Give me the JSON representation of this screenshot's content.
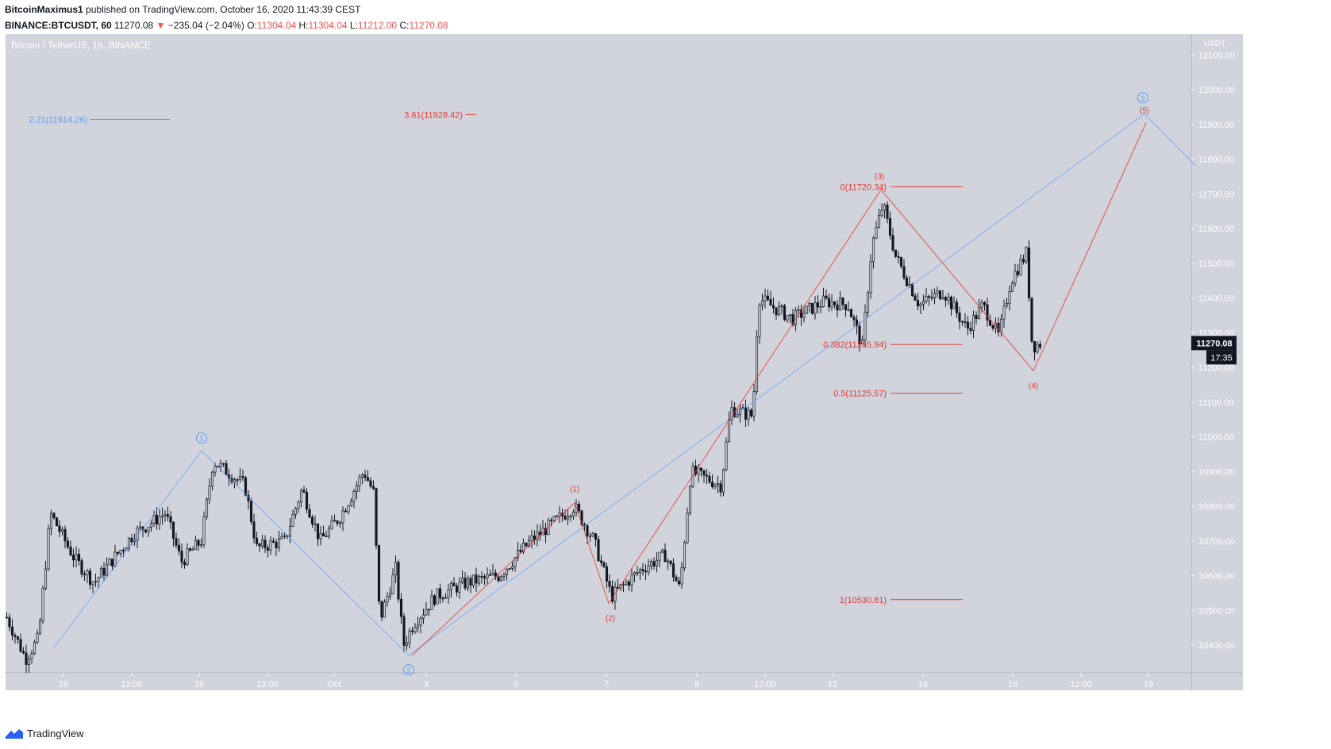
{
  "header": {
    "author": "BitcoinMaximus1",
    "published": "published on TradingView.com, October 16, 2020 11:43:39 CEST",
    "symbol": "BINANCE:BTCUSDT, 60",
    "last": "11270.08",
    "change_arrow": "▼",
    "change": "−235.04 (−2.04%)",
    "o_label": "O:",
    "o_value": "11304.04",
    "h_label": "H:",
    "h_value": "11304.04",
    "l_label": "L:",
    "l_value": "11212.00",
    "c_label": "C:",
    "c_value": "11270.08"
  },
  "footer": {
    "brand": "TradingView",
    "logo_icon": "tradingview-logo-icon"
  },
  "colors": {
    "background": "#d1d4dc",
    "candle": "#131722",
    "red": "#e53935",
    "blue": "#5b9cf6",
    "price_label_bg": "#131722"
  },
  "chart_data": {
    "type": "candlestick",
    "title": "Bitcoin / TetherUS, 1h, BINANCE",
    "axis_unit": "USDT",
    "ylim": [
      10320,
      12160
    ],
    "y_ticks": [
      10400,
      10500,
      10600,
      10700,
      10800,
      10900,
      11000,
      11100,
      11200,
      11300,
      11400,
      11500,
      11600,
      11700,
      11800,
      11900,
      12000,
      12100
    ],
    "y_tick_labels": [
      "10400.00",
      "10500.00",
      "10600.00",
      "10700.00",
      "10800.00",
      "10900.00",
      "11000.00",
      "11100.00",
      "11200.00",
      "11300.00",
      "11400.00",
      "11500.00",
      "11600.00",
      "11700.00",
      "11800.00",
      "11900.00",
      "12000.00",
      "12100.00"
    ],
    "x_ticks": [
      "25",
      "12:00",
      "28",
      "12:00",
      "Oct",
      "3",
      "5",
      "7",
      "9",
      "12:00",
      "12",
      "14",
      "16",
      "12:00",
      "19"
    ],
    "last_price": {
      "value": 11270.08,
      "label": "11270.08",
      "countdown": "17:35"
    },
    "price_path": [
      {
        "t": 0,
        "p": 10480
      },
      {
        "t": 24,
        "p": 10360
      },
      {
        "t": 40,
        "p": 10420
      },
      {
        "t": 55,
        "p": 10780
      },
      {
        "t": 85,
        "p": 10650
      },
      {
        "t": 110,
        "p": 10580
      },
      {
        "t": 160,
        "p": 10720
      },
      {
        "t": 200,
        "p": 10780
      },
      {
        "t": 220,
        "p": 10640
      },
      {
        "t": 245,
        "p": 10700
      },
      {
        "t": 260,
        "p": 10930
      },
      {
        "t": 300,
        "p": 10860
      },
      {
        "t": 315,
        "p": 10680
      },
      {
        "t": 350,
        "p": 10700
      },
      {
        "t": 372,
        "p": 10850
      },
      {
        "t": 395,
        "p": 10700
      },
      {
        "t": 420,
        "p": 10770
      },
      {
        "t": 450,
        "p": 10900
      },
      {
        "t": 462,
        "p": 10840
      },
      {
        "t": 470,
        "p": 10470
      },
      {
        "t": 490,
        "p": 10620
      },
      {
        "t": 500,
        "p": 10400
      },
      {
        "t": 512,
        "p": 10460
      },
      {
        "t": 540,
        "p": 10540
      },
      {
        "t": 580,
        "p": 10580
      },
      {
        "t": 620,
        "p": 10600
      },
      {
        "t": 660,
        "p": 10700
      },
      {
        "t": 715,
        "p": 10800
      },
      {
        "t": 740,
        "p": 10700
      },
      {
        "t": 762,
        "p": 10540
      },
      {
        "t": 800,
        "p": 10620
      },
      {
        "t": 830,
        "p": 10660
      },
      {
        "t": 848,
        "p": 10560
      },
      {
        "t": 862,
        "p": 10900
      },
      {
        "t": 900,
        "p": 10860
      },
      {
        "t": 912,
        "p": 11080
      },
      {
        "t": 940,
        "p": 11060
      },
      {
        "t": 947,
        "p": 11400
      },
      {
        "t": 990,
        "p": 11340
      },
      {
        "t": 1030,
        "p": 11390
      },
      {
        "t": 1060,
        "p": 11380
      },
      {
        "t": 1078,
        "p": 11260
      },
      {
        "t": 1090,
        "p": 11550
      },
      {
        "t": 1104,
        "p": 11670
      },
      {
        "t": 1120,
        "p": 11520
      },
      {
        "t": 1150,
        "p": 11380
      },
      {
        "t": 1180,
        "p": 11420
      },
      {
        "t": 1210,
        "p": 11310
      },
      {
        "t": 1230,
        "p": 11380
      },
      {
        "t": 1250,
        "p": 11290
      },
      {
        "t": 1265,
        "p": 11450
      },
      {
        "t": 1285,
        "p": 11530
      },
      {
        "t": 1292,
        "p": 11260
      },
      {
        "t": 1304,
        "p": 11270
      }
    ],
    "wave_labels_primary": [
      {
        "label": "1",
        "t": 247,
        "p": 10960
      },
      {
        "label": "2",
        "t": 508,
        "p": 10370
      },
      {
        "label": "3",
        "t": 1433,
        "p": 11940
      }
    ],
    "primary_path": [
      {
        "t": 60,
        "p": 10390
      },
      {
        "t": 247,
        "p": 10960
      },
      {
        "t": 508,
        "p": 10370
      },
      {
        "t": 1435,
        "p": 11930
      },
      {
        "t": 1500,
        "p": 11780
      }
    ],
    "wave_labels_minor": [
      {
        "label": "(1)",
        "t": 717,
        "p": 10820
      },
      {
        "label": "(2)",
        "t": 762,
        "p": 10520
      },
      {
        "label": "(3)",
        "t": 1101,
        "p": 11720
      },
      {
        "label": "(4)",
        "t": 1295,
        "p": 11190
      },
      {
        "label": "(5)",
        "t": 1435,
        "p": 11910
      }
    ],
    "minor_path": [
      {
        "t": 512,
        "p": 10370
      },
      {
        "t": 717,
        "p": 10810
      },
      {
        "t": 760,
        "p": 10520
      },
      {
        "t": 1103,
        "p": 11712
      },
      {
        "t": 1295,
        "p": 11190
      },
      {
        "t": 1437,
        "p": 11905
      }
    ],
    "fib_levels": [
      {
        "label": "0(11720.34)",
        "value": 11720.34
      },
      {
        "label": "0.382(11265.94)",
        "value": 11265.94
      },
      {
        "label": "0.5(11125.57)",
        "value": 11125.57
      },
      {
        "label": "1(10530.81)",
        "value": 10530.81
      }
    ],
    "extension_levels": [
      {
        "label": "2.21(11914.26)",
        "value": 11914.26,
        "color": "blue"
      },
      {
        "label": "3.61(11928.42)",
        "value": 11928.42,
        "color": "red"
      }
    ]
  }
}
